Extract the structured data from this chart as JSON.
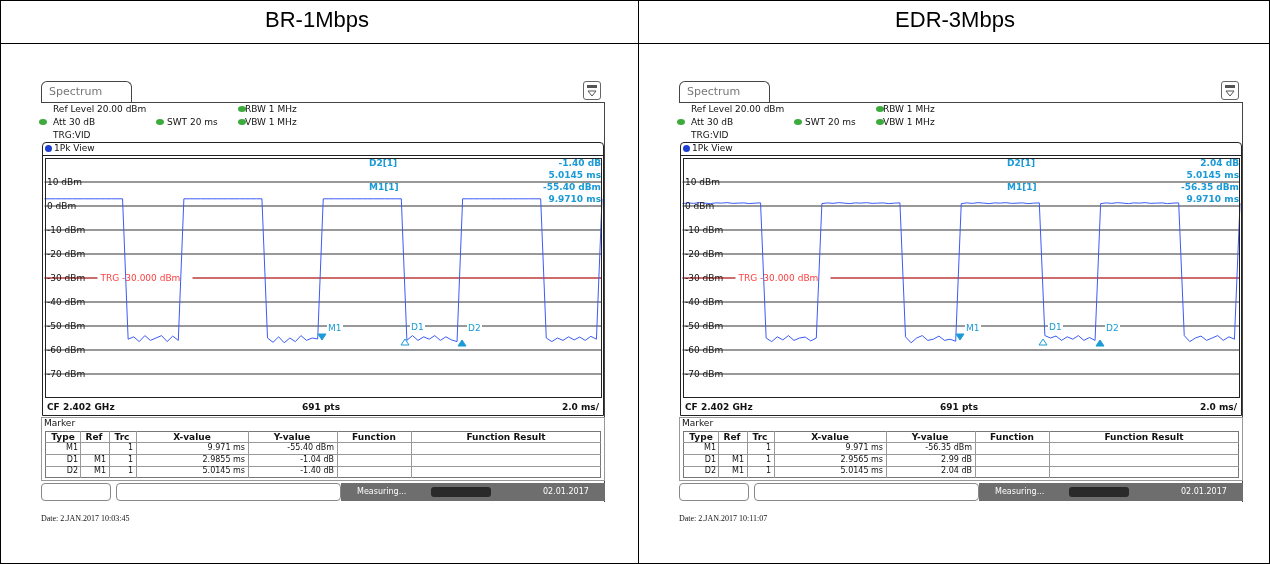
{
  "chart_data": [
    {
      "type": "line",
      "title": "BR-1Mbps",
      "categories": [
        null,
        null,
        null,
        null,
        null,
        null,
        null,
        null,
        null,
        null,
        null,
        null,
        null,
        null,
        null,
        null,
        null,
        null,
        null,
        null,
        null,
        null,
        null,
        null,
        null,
        null,
        null,
        null,
        null,
        null,
        null,
        null,
        null,
        null,
        null,
        null,
        null,
        null,
        null,
        null,
        null,
        null,
        null,
        null,
        null,
        null,
        null,
        null,
        null,
        null,
        null,
        null,
        null,
        null,
        null,
        null,
        null,
        null,
        null,
        null,
        null,
        null,
        null,
        null,
        null,
        null,
        null,
        null,
        null,
        null,
        null,
        null,
        null,
        null,
        null,
        null,
        null,
        null,
        null,
        null,
        null,
        null,
        null,
        null,
        null,
        null,
        null,
        null,
        null,
        null,
        null,
        null,
        null,
        null,
        null,
        null,
        null,
        null,
        null,
        null,
        null
      ],
      "series": [
        {
          "color": "#3b5bf5",
          "values": [
            3,
            3,
            3,
            3,
            3,
            3,
            3,
            3,
            3,
            3,
            3,
            3,
            3,
            3,
            3,
            -55.5,
            -54.5,
            -56.5,
            -54,
            -56,
            -55,
            -54,
            -56.5,
            -54.2,
            -56,
            3,
            3,
            3,
            3,
            3,
            3,
            3,
            3,
            3,
            3,
            3,
            3,
            3,
            3,
            3,
            -55,
            -56.8,
            -54.5,
            -57,
            -55,
            -56.5,
            -54,
            -56,
            -55,
            -55.4,
            3,
            3,
            3,
            3,
            3,
            3,
            3,
            3,
            3,
            3,
            3,
            3,
            3,
            3,
            3,
            -56,
            -54,
            -56,
            -54.5,
            -55.5,
            -54,
            -56,
            -54.5,
            -55.8,
            -56.5,
            3,
            3,
            3,
            3,
            3,
            3,
            3,
            3,
            3,
            3,
            3,
            3,
            3,
            3,
            3,
            -55,
            -56.5,
            -55,
            -56,
            -54.5,
            -55.8,
            -54.6,
            -56,
            -54.3,
            -55.5,
            3
          ]
        }
      ],
      "ylim": [
        -80,
        20
      ],
      "yticks": [
        {
          "value": 10,
          "label": "10 dBm"
        },
        {
          "value": 0,
          "label": "0 dBm"
        },
        {
          "value": -10,
          "label": "-10 dBm"
        },
        {
          "value": -20,
          "label": "-20 dBm"
        },
        {
          "value": -30,
          "label": "-30 dBm"
        },
        {
          "value": -40,
          "label": "-40 dBm"
        },
        {
          "value": -50,
          "label": "-50 dBm"
        },
        {
          "value": -60,
          "label": "-60 dBm"
        },
        {
          "value": -70,
          "label": "-70 dBm"
        }
      ],
      "tick_labels": "y",
      "grid": true,
      "ref_lines": [
        {
          "axis": "y",
          "value": -30,
          "label": "TRG -30.000 dBm",
          "color": "#ff4040"
        }
      ],
      "annotations": [
        "Spectrum",
        "Ref Level 20.00 dBm",
        "Att 30 dB",
        "SWT 20 ms",
        "RBW 1 MHz",
        "VBW 1 MHz",
        "TRG:VID",
        "1Pk View",
        "D2[1]",
        "-1.40 dB",
        "5.0145 ms",
        "M1[1]",
        "-55.40 dBm",
        "9.9710 ms",
        "CF 2.402 GHz",
        "691 pts",
        "2.0 ms/",
        "Marker",
        "Type",
        "Ref",
        "Trc",
        "X-value",
        "Y-value",
        "Function",
        "Function Result",
        "M1",
        "1",
        "9.971 ms",
        "-55.40 dBm",
        "D1",
        "M1",
        "1",
        "2.9855 ms",
        "-1.04 dB",
        "D2",
        "M1",
        "1",
        "5.0145 ms",
        "-1.40 dB",
        "Measuring...",
        "02.01.2017",
        "Date: 2.JAN.2017 10:03:45",
        "M1",
        "D1",
        "D2"
      ]
    },
    {
      "type": "line",
      "title": "EDR-3Mbps",
      "categories": [
        null,
        null,
        null,
        null,
        null,
        null,
        null,
        null,
        null,
        null,
        null,
        null,
        null,
        null,
        null,
        null,
        null,
        null,
        null,
        null,
        null,
        null,
        null,
        null,
        null,
        null,
        null,
        null,
        null,
        null,
        null,
        null,
        null,
        null,
        null,
        null,
        null,
        null,
        null,
        null,
        null,
        null,
        null,
        null,
        null,
        null,
        null,
        null,
        null,
        null,
        null,
        null,
        null,
        null,
        null,
        null,
        null,
        null,
        null,
        null,
        null,
        null,
        null,
        null,
        null,
        null,
        null,
        null,
        null,
        null,
        null,
        null,
        null,
        null,
        null,
        null,
        null,
        null,
        null,
        null,
        null,
        null,
        null,
        null,
        null,
        null,
        null,
        null,
        null,
        null,
        null,
        null,
        null,
        null,
        null,
        null,
        null,
        null,
        null,
        null,
        null
      ],
      "series": [
        {
          "color": "#3b5bf5",
          "values": [
            1.0,
            1.3,
            1.1,
            1.4,
            1.2,
            1.0,
            1.3,
            1.2,
            1.4,
            1.1,
            1.2,
            1.3,
            1.0,
            1.2,
            1.3,
            -55,
            -56.5,
            -54.5,
            -55.8,
            -54,
            -56,
            -55,
            -54.6,
            -56.2,
            -55,
            1.0,
            1.3,
            1.1,
            1.4,
            1.2,
            1.0,
            1.3,
            1.2,
            1.4,
            1.1,
            1.2,
            1.3,
            1.0,
            1.2,
            1.3,
            -54.5,
            -57,
            -55,
            -54,
            -56,
            -55.5,
            -54.2,
            -56,
            -55.5,
            -56.35,
            1.0,
            1.3,
            1.1,
            1.4,
            1.2,
            1.0,
            1.3,
            1.2,
            1.4,
            1.1,
            1.2,
            1.3,
            1.0,
            1.2,
            1.3,
            -54,
            -55,
            -54.2,
            -56,
            -54.5,
            -55.5,
            -54,
            -56,
            -54.8,
            -56,
            1.0,
            1.3,
            1.1,
            1.4,
            1.2,
            1.0,
            1.3,
            1.2,
            1.4,
            1.1,
            1.2,
            1.3,
            1.0,
            1.2,
            1.3,
            -54,
            -56.5,
            -55,
            -54.2,
            -56,
            -55,
            -54,
            -56,
            -54.5,
            -55.5,
            1.2
          ]
        }
      ],
      "ylim": [
        -80,
        20
      ],
      "yticks": [
        {
          "value": 10,
          "label": "10 dBm"
        },
        {
          "value": 0,
          "label": "0 dBm"
        },
        {
          "value": -10,
          "label": "-10 dBm"
        },
        {
          "value": -20,
          "label": "-20 dBm"
        },
        {
          "value": -30,
          "label": "-30 dBm"
        },
        {
          "value": -40,
          "label": "-40 dBm"
        },
        {
          "value": -50,
          "label": "-50 dBm"
        },
        {
          "value": -60,
          "label": "-60 dBm"
        },
        {
          "value": -70,
          "label": "-70 dBm"
        }
      ],
      "tick_labels": "y",
      "grid": true,
      "ref_lines": [
        {
          "axis": "y",
          "value": -30,
          "label": "TRG -30.000 dBm",
          "color": "#ff4040"
        }
      ],
      "annotations": [
        "Spectrum",
        "Ref Level 20.00 dBm",
        "Att 30 dB",
        "SWT 20 ms",
        "RBW 1 MHz",
        "VBW 1 MHz",
        "TRG:VID",
        "1Pk View",
        "D2[1]",
        "2.04 dB",
        "5.0145 ms",
        "M1[1]",
        "-56.35 dBm",
        "9.9710 ms",
        "CF 2.402 GHz",
        "691 pts",
        "2.0 ms/",
        "Marker",
        "Type",
        "Ref",
        "Trc",
        "X-value",
        "Y-value",
        "Function",
        "Function Result",
        "M1",
        "1",
        "9.971 ms",
        "-56.35 dBm",
        "D1",
        "M1",
        "1",
        "2.9565 ms",
        "2.99 dB",
        "D2",
        "M1",
        "1",
        "5.0145 ms",
        "2.04 dB",
        "Measuring...",
        "02.01.2017",
        "Date: 2.JAN.2017 10:11:07",
        "M1",
        "D1",
        "D2"
      ]
    }
  ]
}
